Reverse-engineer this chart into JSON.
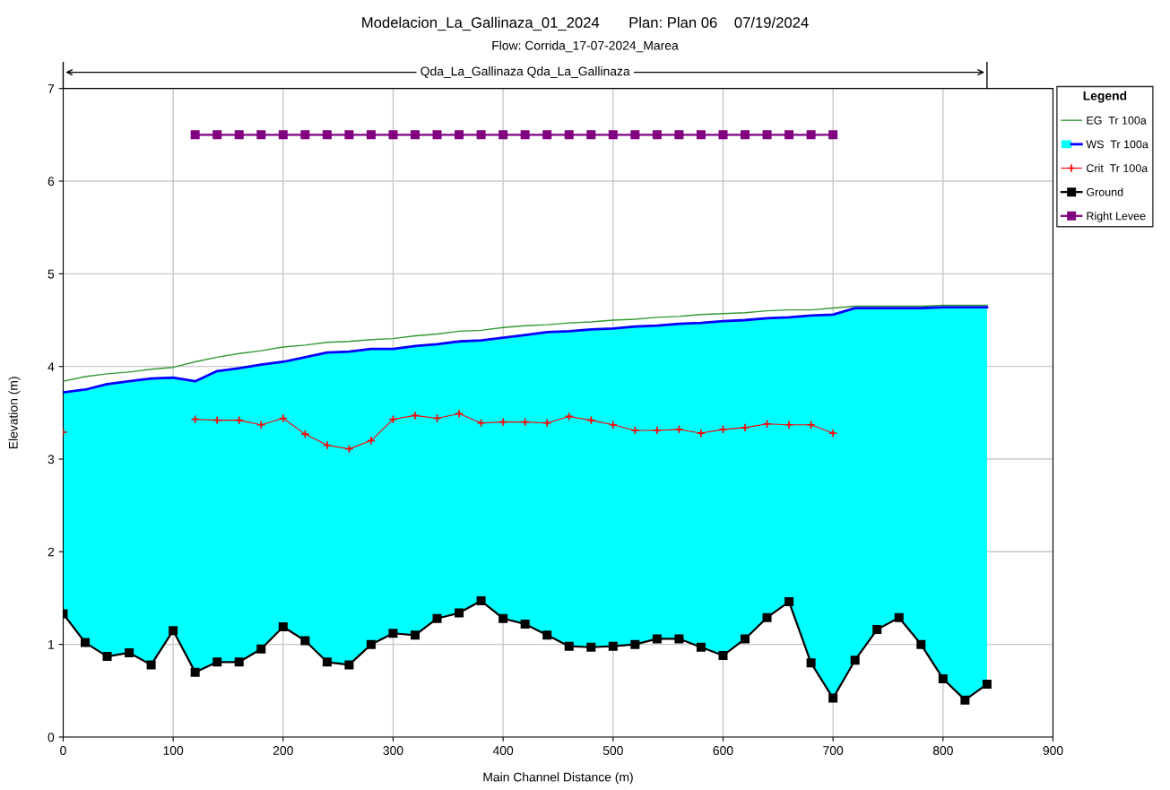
{
  "chart_data": {
    "type": "line",
    "title": "Modelacion_La_Gallinaza_01_2024       Plan: Plan 06    07/19/2024",
    "subtitle": "Flow: Corrida_17-07-2024_Marea",
    "xlabel": "Main Channel Distance (m)",
    "ylabel": "Elevation (m)",
    "legend_title": "Legend",
    "annotations": [
      "Qda_La_Gallinaza Qda_La_Gallinaza"
    ],
    "x": [
      0,
      20,
      40,
      60,
      80,
      100,
      120,
      140,
      160,
      180,
      200,
      220,
      240,
      260,
      280,
      300,
      320,
      340,
      360,
      380,
      400,
      420,
      440,
      460,
      480,
      500,
      520,
      540,
      560,
      580,
      600,
      620,
      640,
      660,
      680,
      700,
      720,
      740,
      760,
      780,
      800,
      820,
      840
    ],
    "series": [
      {
        "name": "EG  Tr 100a",
        "color": "#339933",
        "marker": "none",
        "values": [
          3.84,
          3.89,
          3.92,
          3.94,
          3.97,
          3.99,
          4.05,
          4.1,
          4.14,
          4.17,
          4.21,
          4.23,
          4.26,
          4.27,
          4.29,
          4.3,
          4.33,
          4.35,
          4.38,
          4.39,
          4.42,
          4.44,
          4.45,
          4.47,
          4.48,
          4.5,
          4.51,
          4.53,
          4.54,
          4.56,
          4.57,
          4.58,
          4.6,
          4.61,
          4.61,
          4.63,
          4.65,
          4.65,
          4.65,
          4.65,
          4.66,
          4.66,
          4.66
        ]
      },
      {
        "name": "WS  Tr 100a",
        "type": "area",
        "color": "#0000ff",
        "colors": [
          "#00ffff",
          "#00ffff",
          "#00ffff",
          "#00ffff",
          "#00ffff",
          "#00ffff",
          "#00ffff",
          "#00ffff",
          "#00ffff",
          "#00ffff",
          "#00ffff",
          "#00ffff",
          "#00ffff",
          "#00ffff",
          "#00ffff",
          "#00ffff",
          "#00ffff",
          "#00ffff",
          "#00ffff",
          "#00ffff",
          "#00ffff",
          "#00ffff",
          "#00ffff",
          "#00ffff",
          "#00ffff",
          "#00ffff",
          "#00ffff",
          "#00ffff",
          "#00ffff",
          "#00ffff",
          "#00ffff",
          "#00ffff",
          "#00ffff",
          "#00ffff",
          "#00ffff",
          "#00ffff",
          "#00ffff",
          "#00ffff",
          "#00ffff",
          "#00ffff",
          "#00ffff",
          "#00ffff",
          "#00ffff"
        ],
        "marker": "none",
        "values": [
          3.72,
          3.75,
          3.81,
          3.84,
          3.87,
          3.88,
          3.84,
          3.95,
          3.98,
          4.02,
          4.05,
          4.1,
          4.15,
          4.16,
          4.19,
          4.19,
          4.22,
          4.24,
          4.27,
          4.28,
          4.31,
          4.34,
          4.37,
          4.38,
          4.4,
          4.41,
          4.43,
          4.44,
          4.46,
          4.47,
          4.49,
          4.5,
          4.52,
          4.53,
          4.55,
          4.56,
          4.63,
          4.63,
          4.63,
          4.63,
          4.64,
          4.64,
          4.64
        ]
      },
      {
        "name": "Crit  Tr 100a",
        "color": "#ff0000",
        "marker": "cross",
        "values": [
          3.29,
          null,
          null,
          null,
          null,
          null,
          3.43,
          3.42,
          3.42,
          3.37,
          3.44,
          3.27,
          3.15,
          3.11,
          3.2,
          3.43,
          3.47,
          3.44,
          3.49,
          3.39,
          3.4,
          3.4,
          3.39,
          3.46,
          3.42,
          3.37,
          3.31,
          3.31,
          3.32,
          3.28,
          3.32,
          3.34,
          3.38,
          3.37,
          3.37,
          3.28,
          null,
          null,
          null,
          null,
          null,
          null,
          null
        ]
      },
      {
        "name": "Ground",
        "color": "#000000",
        "marker": "square",
        "values": [
          1.33,
          1.02,
          0.87,
          0.91,
          0.78,
          1.15,
          0.7,
          0.81,
          0.81,
          0.95,
          1.19,
          1.04,
          0.81,
          0.78,
          1.0,
          1.12,
          1.1,
          1.28,
          1.34,
          1.47,
          1.28,
          1.22,
          1.1,
          0.98,
          0.97,
          0.98,
          1.0,
          1.06,
          1.06,
          0.97,
          0.88,
          1.06,
          1.29,
          1.46,
          0.8,
          0.42,
          0.83,
          1.16,
          1.29,
          1.0,
          0.63,
          0.4,
          0.57
        ]
      },
      {
        "name": "Right Levee",
        "color": "#800080",
        "marker": "square",
        "values": [
          null,
          null,
          null,
          null,
          null,
          null,
          6.5,
          6.5,
          6.5,
          6.5,
          6.5,
          6.5,
          6.5,
          6.5,
          6.5,
          6.5,
          6.5,
          6.5,
          6.5,
          6.5,
          6.5,
          6.5,
          6.5,
          6.5,
          6.5,
          6.5,
          6.5,
          6.5,
          6.5,
          6.5,
          6.5,
          6.5,
          6.5,
          6.5,
          6.5,
          6.5,
          null,
          null,
          null,
          null,
          null,
          null,
          null
        ]
      }
    ],
    "xlim": [
      0,
      900
    ],
    "xticks": [
      0,
      100,
      200,
      300,
      400,
      500,
      600,
      700,
      800,
      900
    ],
    "ylim": [
      0,
      7
    ],
    "yticks": [
      0,
      1,
      2,
      3,
      4,
      5,
      6,
      7
    ],
    "grid": true,
    "legend": "top right"
  }
}
